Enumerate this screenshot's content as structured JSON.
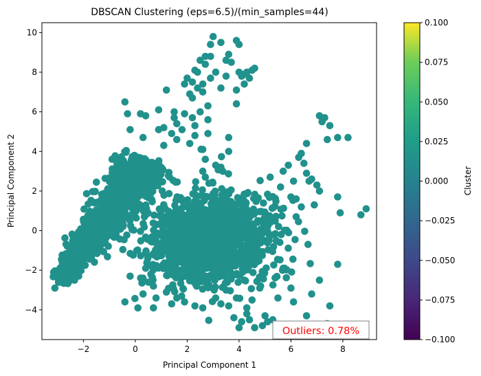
{
  "chart_data": {
    "type": "scatter",
    "title": "DBSCAN Clustering (eps=6.5)/(min_samples=44)",
    "xlabel": "Principal Component 1",
    "ylabel": "Principal Component 2",
    "xlim": [
      -3.6,
      9.3
    ],
    "ylim": [
      -5.5,
      10.5
    ],
    "xticks": [
      -2,
      0,
      2,
      4,
      6,
      8
    ],
    "yticks": [
      -4,
      -2,
      0,
      2,
      4,
      6,
      8,
      10
    ],
    "grid": false,
    "point_color": "#21918c",
    "clusters": [
      {
        "name": "diagonal-band",
        "kind": "band",
        "from": [
          -3.0,
          -2.6
        ],
        "to": [
          0.6,
          3.5
        ],
        "width": 0.55,
        "n": 1100
      },
      {
        "name": "lower-blob",
        "kind": "ellipse",
        "center": [
          2.9,
          -0.4
        ],
        "spread": [
          1.2,
          1.15
        ],
        "angle_deg": 18,
        "n": 1300
      }
    ],
    "sparse_points": [
      [
        -3.1,
        -2.9
      ],
      [
        -2.5,
        -2.1
      ],
      [
        -2.2,
        -1.6
      ],
      [
        -1.9,
        -0.8
      ],
      [
        -0.4,
        6.5
      ],
      [
        -0.3,
        5.9
      ],
      [
        -0.2,
        5.1
      ],
      [
        0.3,
        4.7
      ],
      [
        0.2,
        5.9
      ],
      [
        0.4,
        5.8
      ],
      [
        0.9,
        5.1
      ],
      [
        0.9,
        6.1
      ],
      [
        1.1,
        4.3
      ],
      [
        1.1,
        5.2
      ],
      [
        1.4,
        4.9
      ],
      [
        1.5,
        5.7
      ],
      [
        1.5,
        6.0
      ],
      [
        1.6,
        5.4
      ],
      [
        1.6,
        4.6
      ],
      [
        1.8,
        5.1
      ],
      [
        1.9,
        5.9
      ],
      [
        2.1,
        4.4
      ],
      [
        2.2,
        5.7
      ],
      [
        2.2,
        6.7
      ],
      [
        2.3,
        5.3
      ],
      [
        2.3,
        4.8
      ],
      [
        2.4,
        7.2
      ],
      [
        2.5,
        6.0
      ],
      [
        2.6,
        4.1
      ],
      [
        2.6,
        3.0
      ],
      [
        2.7,
        2.7
      ],
      [
        2.7,
        3.6
      ],
      [
        2.8,
        4.9
      ],
      [
        2.8,
        5.6
      ],
      [
        1.2,
        7.1
      ],
      [
        1.9,
        7.4
      ],
      [
        2.0,
        7.7
      ],
      [
        2.1,
        6.9
      ],
      [
        2.2,
        7.5
      ],
      [
        2.3,
        8.1
      ],
      [
        2.4,
        8.0
      ],
      [
        2.5,
        8.6
      ],
      [
        2.6,
        7.4
      ],
      [
        2.6,
        7.0
      ],
      [
        2.7,
        8.4
      ],
      [
        2.7,
        8.8
      ],
      [
        2.8,
        6.3
      ],
      [
        2.9,
        7.7
      ],
      [
        2.9,
        8.8
      ],
      [
        2.9,
        9.4
      ],
      [
        3.0,
        9.8
      ],
      [
        3.1,
        8.0
      ],
      [
        3.3,
        9.5
      ],
      [
        3.3,
        7.2
      ],
      [
        3.5,
        7.8
      ],
      [
        3.5,
        8.6
      ],
      [
        3.6,
        8.9
      ],
      [
        3.7,
        8.5
      ],
      [
        3.9,
        6.4
      ],
      [
        3.9,
        7.1
      ],
      [
        4.0,
        8.0
      ],
      [
        4.1,
        7.8
      ],
      [
        4.2,
        7.4
      ],
      [
        4.2,
        7.9
      ],
      [
        4.3,
        8.0
      ],
      [
        4.4,
        7.7
      ],
      [
        4.5,
        8.1
      ],
      [
        4.6,
        8.2
      ],
      [
        3.9,
        9.6
      ],
      [
        4.0,
        9.4
      ],
      [
        3.6,
        4.7
      ],
      [
        3.6,
        4.0
      ],
      [
        3.1,
        3.3
      ],
      [
        3.3,
        3.2
      ],
      [
        5.7,
        3.0
      ],
      [
        5.9,
        3.3
      ],
      [
        6.0,
        1.7
      ],
      [
        6.1,
        2.5
      ],
      [
        6.3,
        3.7
      ],
      [
        6.4,
        3.9
      ],
      [
        6.5,
        3.4
      ],
      [
        6.6,
        2.9
      ],
      [
        6.7,
        2.5
      ],
      [
        6.8,
        2.6
      ],
      [
        7.0,
        2.3
      ],
      [
        7.1,
        2.0
      ],
      [
        6.6,
        4.4
      ],
      [
        6.2,
        0.7
      ],
      [
        6.4,
        1.2
      ],
      [
        7.2,
        5.5
      ],
      [
        7.3,
        5.7
      ],
      [
        7.5,
        5.3
      ],
      [
        7.1,
        5.8
      ],
      [
        7.4,
        4.6
      ],
      [
        7.8,
        4.7
      ],
      [
        7.8,
        1.7
      ],
      [
        7.9,
        0.9
      ],
      [
        8.2,
        4.7
      ],
      [
        8.7,
        0.8
      ],
      [
        8.9,
        1.1
      ],
      [
        6.9,
        1.3
      ],
      [
        6.2,
        1.6
      ],
      [
        5.6,
        2.2
      ],
      [
        5.2,
        2.7
      ],
      [
        5.7,
        -1.9
      ],
      [
        6.0,
        -2.9
      ],
      [
        6.1,
        -3.6
      ],
      [
        6.6,
        -4.3
      ],
      [
        7.1,
        -2.5
      ],
      [
        7.5,
        -3.8
      ],
      [
        7.8,
        -1.7
      ],
      [
        7.4,
        -4.7
      ],
      [
        6.8,
        -3.2
      ],
      [
        5.5,
        -3.4
      ],
      [
        5.0,
        -4.3
      ],
      [
        4.9,
        -4.8
      ],
      [
        5.1,
        -4.6
      ],
      [
        5.3,
        -4.5
      ],
      [
        4.6,
        -4.9
      ],
      [
        4.4,
        -4.5
      ],
      [
        4.1,
        -4.6
      ],
      [
        4.3,
        -4.2
      ],
      [
        3.8,
        -4.4
      ],
      [
        4.0,
        -4.9
      ],
      [
        4.5,
        -3.5
      ],
      [
        4.8,
        -2.9
      ],
      [
        4.3,
        -3.9
      ],
      [
        3.6,
        -3.8
      ],
      [
        3.9,
        -3.4
      ],
      [
        -0.4,
        -3.6
      ],
      [
        0.1,
        -3.9
      ],
      [
        0.3,
        -3.2
      ],
      [
        0.7,
        -3.9
      ],
      [
        0.8,
        -3.4
      ],
      [
        1.2,
        -3.1
      ],
      [
        1.4,
        -3.7
      ],
      [
        1.6,
        -3.4
      ],
      [
        1.9,
        -3.6
      ],
      [
        2.3,
        -3.8
      ],
      [
        2.6,
        -3.9
      ],
      [
        3.1,
        -3.4
      ],
      [
        3.3,
        -3.7
      ],
      [
        3.5,
        -3.0
      ],
      [
        0.3,
        -2.4
      ],
      [
        0.4,
        -1.9
      ],
      [
        0.5,
        -1.3
      ],
      [
        0.6,
        -2.2
      ],
      [
        -0.2,
        -2.3
      ],
      [
        0.7,
        -2.8
      ]
    ],
    "annotation": {
      "text": "Outliers: 0.78%",
      "color": "#ff0000",
      "position": "bottom-right"
    },
    "colorbar": {
      "label": "Cluster",
      "ticks": [
        "0.100",
        "0.075",
        "0.050",
        "0.025",
        "0.000",
        "−0.025",
        "−0.050",
        "−0.075",
        "−0.100"
      ],
      "range": [
        -0.1,
        0.1
      ],
      "colormap": "viridis"
    }
  }
}
